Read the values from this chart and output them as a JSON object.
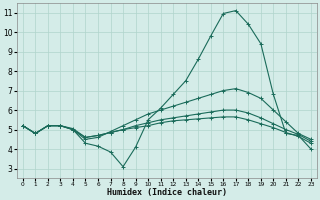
{
  "xlabel": "Humidex (Indice chaleur)",
  "background_color": "#d4ece8",
  "grid_color": "#b0d4cc",
  "line_color": "#1a6b5a",
  "xlim": [
    -0.5,
    23.5
  ],
  "ylim": [
    2.5,
    11.5
  ],
  "xticks": [
    0,
    1,
    2,
    3,
    4,
    5,
    6,
    7,
    8,
    9,
    10,
    11,
    12,
    13,
    14,
    15,
    16,
    17,
    18,
    19,
    20,
    21,
    22,
    23
  ],
  "yticks": [
    3,
    4,
    5,
    6,
    7,
    8,
    9,
    10,
    11
  ],
  "line1_x": [
    0,
    1,
    2,
    3,
    4,
    5,
    6,
    7,
    8,
    9,
    10,
    11,
    12,
    13,
    14,
    15,
    16,
    17,
    18,
    19,
    20,
    21,
    22,
    23
  ],
  "line1_y": [
    5.2,
    4.8,
    5.2,
    5.2,
    5.0,
    4.3,
    4.15,
    3.85,
    3.1,
    4.1,
    5.5,
    6.1,
    6.8,
    7.5,
    8.6,
    9.8,
    10.95,
    11.1,
    10.4,
    9.4,
    6.8,
    4.8,
    4.7,
    4.0
  ],
  "line2_x": [
    0,
    1,
    2,
    3,
    4,
    5,
    6,
    7,
    8,
    9,
    10,
    11,
    12,
    13,
    14,
    15,
    16,
    17,
    18,
    19,
    20,
    21,
    22,
    23
  ],
  "line2_y": [
    5.2,
    4.8,
    5.2,
    5.2,
    5.0,
    4.5,
    4.6,
    4.9,
    5.2,
    5.5,
    5.8,
    6.0,
    6.2,
    6.4,
    6.6,
    6.8,
    7.0,
    7.1,
    6.9,
    6.6,
    6.0,
    5.4,
    4.8,
    4.5
  ],
  "line3_x": [
    0,
    1,
    2,
    3,
    4,
    5,
    6,
    7,
    8,
    9,
    10,
    11,
    12,
    13,
    14,
    15,
    16,
    17,
    18,
    19,
    20,
    21,
    22,
    23
  ],
  "line3_y": [
    5.2,
    4.8,
    5.2,
    5.2,
    5.0,
    4.6,
    4.7,
    4.85,
    5.0,
    5.2,
    5.35,
    5.5,
    5.6,
    5.7,
    5.8,
    5.9,
    6.0,
    6.0,
    5.85,
    5.6,
    5.3,
    5.0,
    4.75,
    4.4
  ],
  "line4_x": [
    0,
    1,
    2,
    3,
    4,
    5,
    6,
    7,
    8,
    9,
    10,
    11,
    12,
    13,
    14,
    15,
    16,
    17,
    18,
    19,
    20,
    21,
    22,
    23
  ],
  "line4_y": [
    5.2,
    4.8,
    5.2,
    5.2,
    5.05,
    4.6,
    4.7,
    4.85,
    5.0,
    5.1,
    5.2,
    5.35,
    5.45,
    5.5,
    5.55,
    5.6,
    5.65,
    5.65,
    5.5,
    5.3,
    5.1,
    4.85,
    4.65,
    4.3
  ]
}
